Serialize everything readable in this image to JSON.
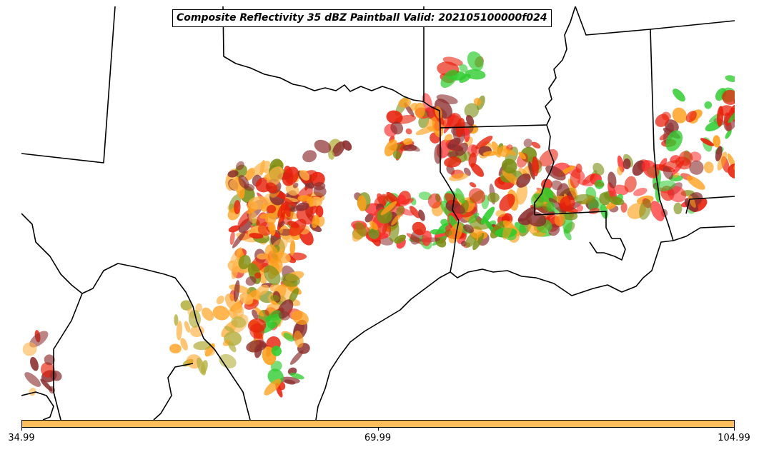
{
  "title": "Composite Reflectivity 35 dBZ Paintball Valid: 202105100000f024",
  "colorbar": {
    "color": "#ffbe5c",
    "ticks": [
      {
        "value": 34.99,
        "label": "34.99"
      },
      {
        "value": 69.99,
        "label": "69.99"
      },
      {
        "value": 104.99,
        "label": "104.99"
      }
    ],
    "range": [
      34.99,
      104.99
    ]
  },
  "palette": {
    "orange": "#ff9f1a",
    "light_orange": "#ffb347",
    "red": "#e8200a",
    "bright_red": "#ff2a2a",
    "olive": "#7a8f14",
    "khaki": "#b5b040",
    "green": "#2ecc2e",
    "dark_green": "#2e7d32",
    "brown": "#8b2e2e",
    "gray": "#555555"
  },
  "map": {
    "boundary_color": "#000000",
    "background": "#ffffff"
  }
}
